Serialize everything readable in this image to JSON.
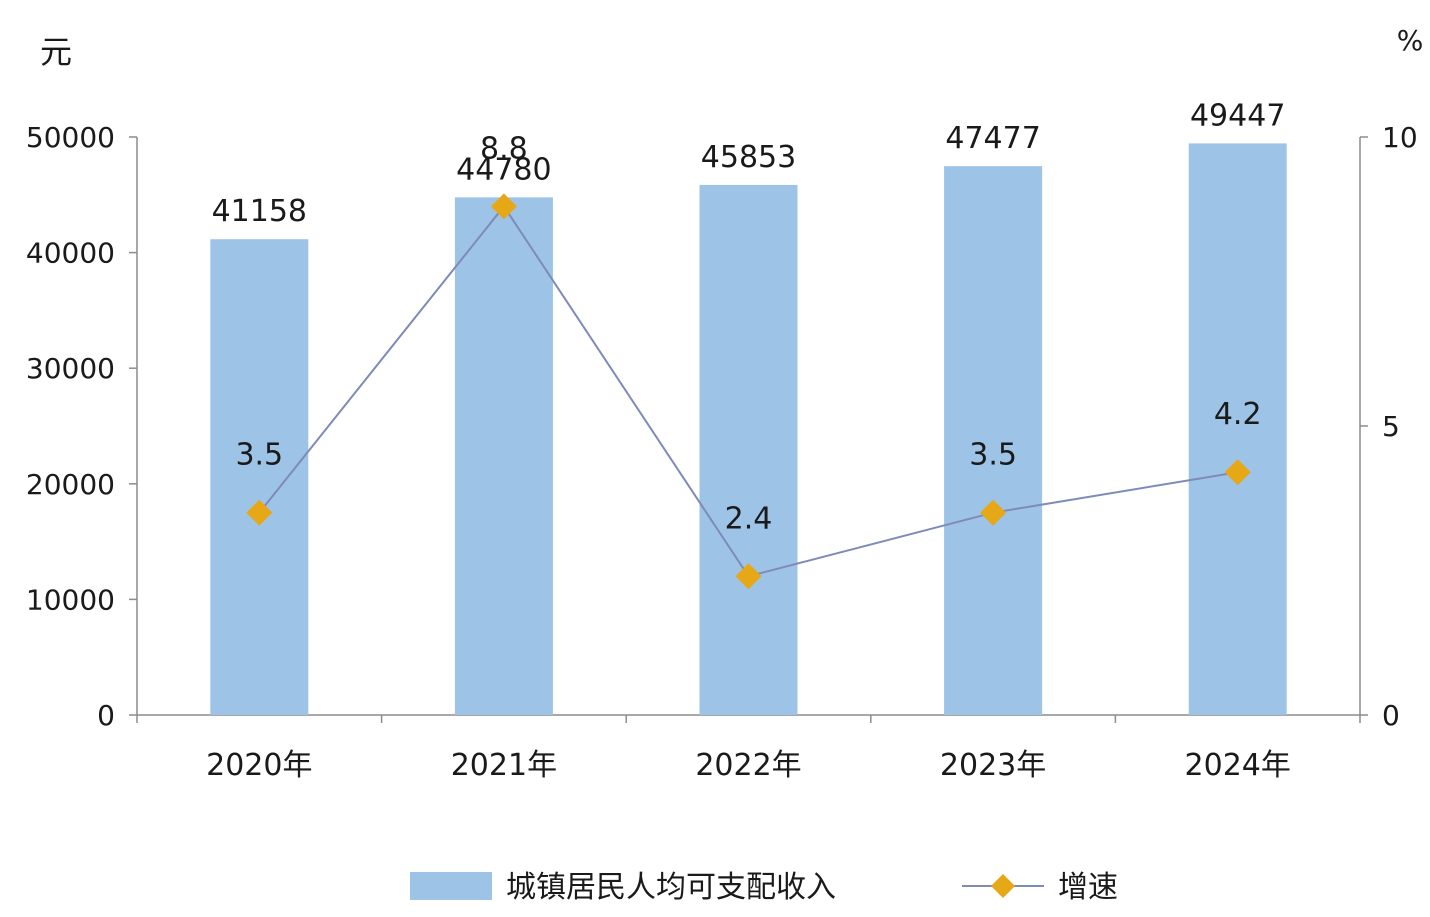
{
  "chart_data": {
    "type": "bar",
    "categories": [
      "2020年",
      "2021年",
      "2022年",
      "2023年",
      "2024年"
    ],
    "series": [
      {
        "name": "城镇居民人均可支配收入",
        "type": "bar",
        "axis": "left",
        "values": [
          41158,
          44780,
          45853,
          47477,
          49447
        ],
        "color": "#9DC3E6"
      },
      {
        "name": "增速",
        "type": "line",
        "axis": "right",
        "values": [
          3.5,
          8.8,
          2.4,
          3.5,
          4.2
        ],
        "labels": [
          "3.5",
          "8.8",
          "2.4",
          "3.5",
          "4.2"
        ],
        "line_color": "#7F8AB8",
        "marker_color": "#E6A817",
        "marker": "diamond"
      }
    ],
    "y_left": {
      "unit": "元",
      "ylim": [
        0,
        50000
      ],
      "ticks": [
        0,
        10000,
        20000,
        30000,
        40000,
        50000
      ]
    },
    "y_right": {
      "unit": "%",
      "ylim": [
        0,
        10
      ],
      "ticks": [
        0,
        5,
        10
      ]
    },
    "legend_position": "bottom",
    "grid": false
  }
}
